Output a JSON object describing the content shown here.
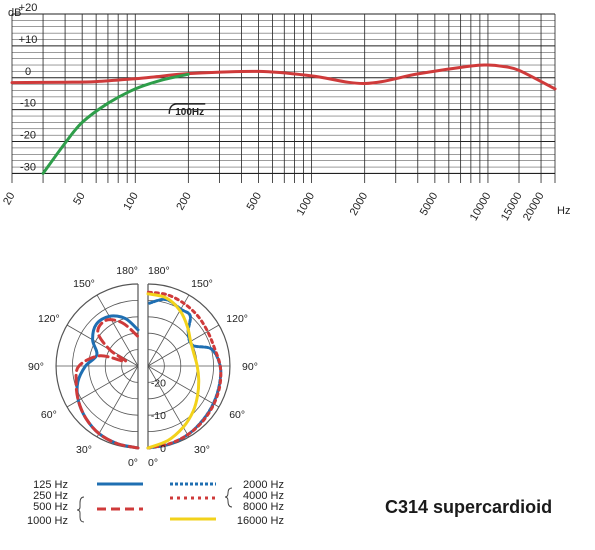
{
  "title": "C314 supercardioid",
  "colors": {
    "grid": "#222222",
    "red": "#cf3a3a",
    "green": "#2e9e4a",
    "blue": "#1f6fb2",
    "yellow": "#f2d21b",
    "ring": "#555555"
  },
  "chart_data": [
    {
      "type": "line",
      "x_scale": "log",
      "ylabel": "dB",
      "xunit": "Hz",
      "xlim": [
        20,
        24000
      ],
      "ylim": [
        -33,
        20
      ],
      "yticks": [
        20,
        10,
        0,
        -10,
        -20,
        -30
      ],
      "ytick_labels": [
        "+20",
        "+10",
        "0",
        "-10",
        "-20",
        "-30"
      ],
      "xticks": [
        20,
        50,
        100,
        200,
        500,
        1000,
        2000,
        5000,
        10000,
        15000,
        20000
      ],
      "xtick_labels": [
        "20",
        "50",
        "100",
        "200",
        "500",
        "1000",
        "2000",
        "5000",
        "10000",
        "15000",
        "20000"
      ],
      "annotation": "100Hz",
      "grid": true,
      "series": [
        {
          "x": [
            20,
            40,
            60,
            100,
            140,
            200,
            500,
            1000,
            2000,
            4000,
            8000,
            10000,
            12000,
            15000,
            24000
          ],
          "y": [
            -1.5,
            -1.4,
            -1.2,
            -0.3,
            0.5,
            1.3,
            2,
            0.6,
            -1.8,
            1.2,
            3.7,
            4,
            3.6,
            2.3,
            -3.5
          ]
        },
        {
          "x": [
            30,
            40,
            50,
            70,
            100,
            140,
            200
          ],
          "y": [
            -30,
            -20.5,
            -14,
            -8,
            -3.5,
            -0.8,
            1.1
          ]
        }
      ]
    },
    {
      "type": "polar",
      "angle_labels_left": [
        "180°",
        "150°",
        "120°",
        "90°",
        "60°",
        "30°",
        "0°"
      ],
      "angle_labels_right": [
        "180°",
        "150°",
        "120°",
        "90°",
        "60°",
        "30°",
        "0°"
      ],
      "radial_labels": [
        "-20",
        "-10",
        "0"
      ],
      "rlim": [
        -25,
        0
      ],
      "series_left": [
        {
          "angles": [
            0,
            15,
            30,
            45,
            60,
            75,
            90,
            105,
            120,
            135,
            150,
            165,
            180
          ],
          "db": [
            0,
            -0.5,
            -1.2,
            -2.5,
            -4,
            -6,
            -9,
            -12,
            -9,
            -7,
            -7.5,
            -10,
            -14
          ]
        },
        {
          "angles": [
            0,
            15,
            30,
            45,
            60,
            75,
            90,
            105,
            110,
            120,
            130,
            145,
            160,
            180
          ],
          "db": [
            0,
            -0.5,
            -1.2,
            -2.5,
            -4,
            -5.5,
            -7,
            -13,
            -21,
            -15,
            -9,
            -8,
            -11,
            -16
          ]
        }
      ],
      "series_right": [
        {
          "angles": [
            0,
            15,
            30,
            45,
            60,
            75,
            90,
            105,
            115,
            130,
            140,
            150,
            165,
            180
          ],
          "db": [
            0,
            -0.3,
            -0.8,
            -1.5,
            -2,
            -2.5,
            -3,
            -5,
            -10,
            -9,
            -5,
            -5,
            -4,
            -6
          ]
        },
        {
          "angles": [
            0,
            15,
            30,
            45,
            60,
            75,
            90,
            105,
            120,
            135,
            150,
            165,
            180
          ],
          "db": [
            0,
            -0.4,
            -0.8,
            -1.3,
            -1.8,
            -2.3,
            -3,
            -4,
            -4,
            -3.5,
            -3,
            -2.5,
            -2.5
          ]
        },
        {
          "angles": [
            0,
            15,
            30,
            45,
            60,
            75,
            90,
            105,
            120,
            135,
            150,
            165,
            180
          ],
          "db": [
            0,
            -1.5,
            -3.5,
            -5.5,
            -7.5,
            -9,
            -10,
            -10.5,
            -10,
            -8,
            -5.5,
            -3.5,
            -3
          ]
        }
      ]
    }
  ],
  "legend": {
    "left_labels": [
      "125 Hz",
      "250 Hz",
      "500 Hz",
      "1000 Hz"
    ],
    "right_labels": [
      "2000 Hz",
      "4000 Hz",
      "8000 Hz",
      "16000 Hz"
    ]
  }
}
